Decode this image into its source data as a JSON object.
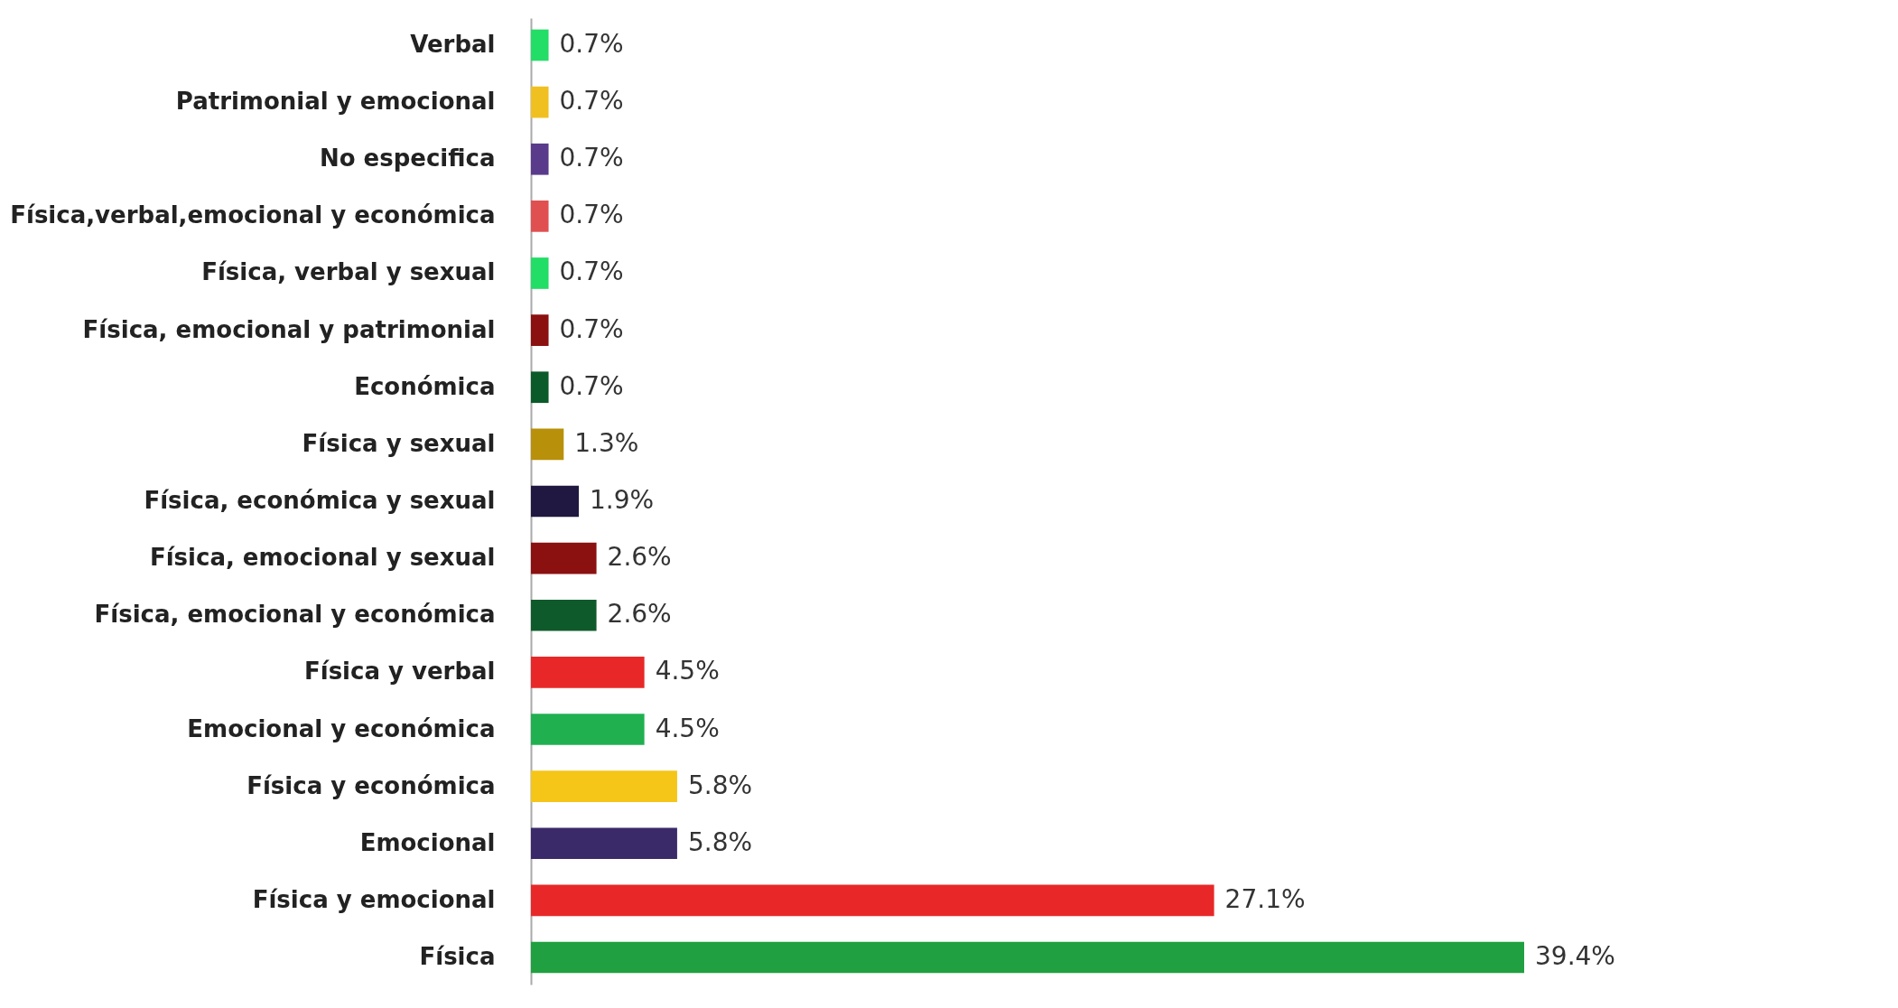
{
  "chart_data": {
    "type": "bar",
    "orientation": "horizontal",
    "tick_labels": "y",
    "legend": false,
    "categories": [
      "Verbal",
      "Patrimonial y emocional",
      "No especifica",
      "Física,verbal,emocional y económica",
      "Física, verbal y sexual",
      "Física, emocional y patrimonial",
      "Económica",
      "Física y sexual",
      "Física, económica y sexual",
      "Física, emocional y sexual",
      "Física, emocional y económica",
      "Física y verbal",
      "Emocional y económica",
      "Física y económica",
      "Emocional",
      "Física y emocional",
      "Física"
    ],
    "values": [
      0.7,
      0.7,
      0.7,
      0.7,
      0.7,
      0.7,
      0.7,
      1.3,
      1.9,
      2.6,
      2.6,
      4.5,
      4.5,
      5.8,
      5.8,
      27.1,
      39.4
    ],
    "value_labels": [
      "0.7%",
      "0.7%",
      "0.7%",
      "0.7%",
      "0.7%",
      "0.7%",
      "0.7%",
      "1.3%",
      "1.9%",
      "2.6%",
      "2.6%",
      "4.5%",
      "4.5%",
      "5.8%",
      "5.8%",
      "27.1%",
      "39.4%"
    ],
    "colors": [
      "#22dd66",
      "#f0c020",
      "#5a3a8a",
      "#e05050",
      "#22dd66",
      "#8b1010",
      "#0a5a2a",
      "#b8900a",
      "#201840",
      "#8b1010",
      "#0f5a2a",
      "#e82828",
      "#20b050",
      "#f5c518",
      "#3a2a6a",
      "#e82828",
      "#20a040"
    ]
  }
}
